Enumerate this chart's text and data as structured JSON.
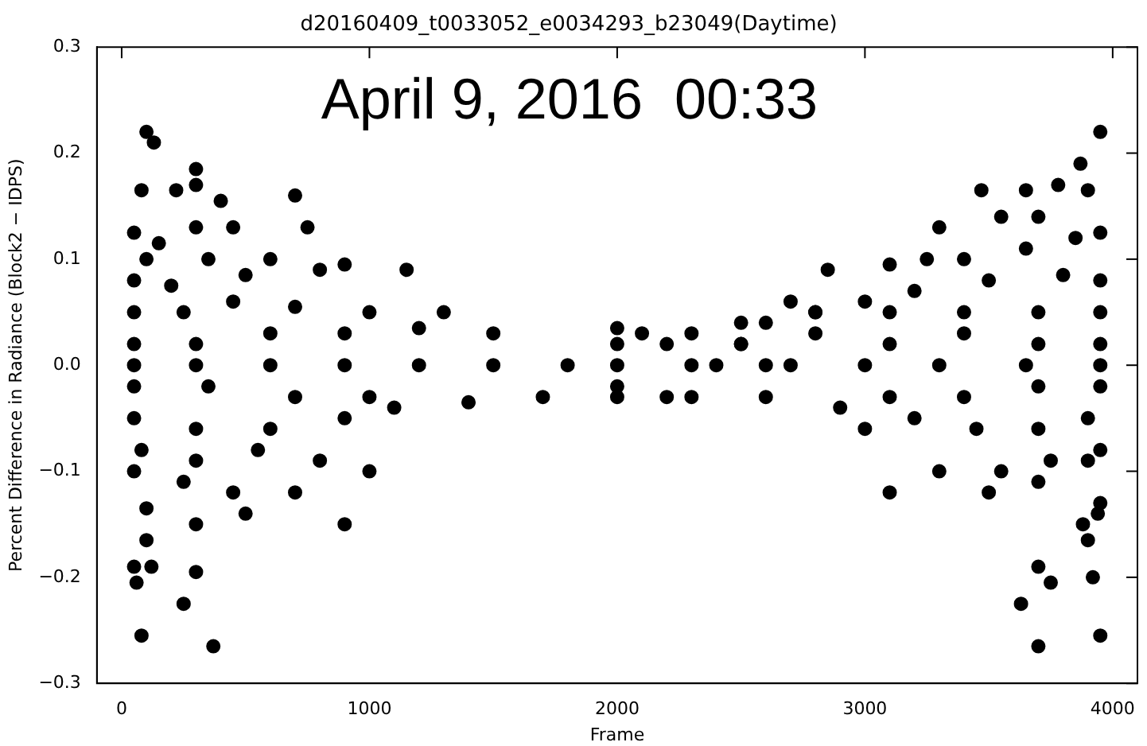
{
  "chart_data": {
    "type": "scatter",
    "title": "d20160409_t0033052_e0034293_b23049(Daytime)",
    "xlabel": "Frame",
    "ylabel": "Percent Difference in Radiance (Block2 − IDPS)",
    "annotations": [
      "April 9, 2016  00:33"
    ],
    "xlim": [
      -100,
      4100
    ],
    "xticks": [
      0,
      1000,
      2000,
      3000,
      4000
    ],
    "ylim": [
      -0.3,
      0.3
    ],
    "yticks": [
      {
        "value": -0.3,
        "label": "−0.3"
      },
      {
        "value": -0.2,
        "label": "−0.2"
      },
      {
        "value": -0.1,
        "label": "−0.1"
      },
      {
        "value": 0,
        "label": "0.0"
      },
      {
        "value": 0.1,
        "label": "0.1"
      },
      {
        "value": 0.2,
        "label": "0.2"
      },
      {
        "value": 0.3,
        "label": "0.3"
      }
    ],
    "grid": false,
    "legend": false,
    "marker": "circle",
    "series": [
      {
        "color": "#000000",
        "x": [
          100,
          130,
          300,
          80,
          220,
          300,
          400,
          700,
          50,
          150,
          300,
          450,
          750,
          100,
          350,
          600,
          900,
          1150,
          50,
          200,
          500,
          800,
          50,
          250,
          450,
          700,
          1000,
          1300,
          50,
          300,
          600,
          900,
          1200,
          1500,
          50,
          300,
          600,
          900,
          1200,
          1500,
          1800,
          50,
          350,
          700,
          1000,
          1400,
          1700,
          50,
          300,
          600,
          900,
          1100,
          80,
          300,
          550,
          800,
          1000,
          50,
          250,
          450,
          700,
          100,
          300,
          500,
          900,
          50,
          120,
          60,
          300,
          250,
          80,
          370,
          100,
          2000,
          2000,
          2000,
          2000,
          2000,
          2100,
          2200,
          2300,
          2300,
          2400,
          2500,
          2600,
          2600,
          2700,
          2800,
          3950,
          3870,
          3470,
          3650,
          3780,
          3900,
          3550,
          3300,
          3700,
          3950,
          3850,
          3650,
          3400,
          3250,
          3100,
          2850,
          3950,
          3800,
          3500,
          3200,
          3000,
          2700,
          3950,
          3700,
          3400,
          3100,
          2800,
          2500,
          3950,
          3700,
          3400,
          3100,
          2800,
          2500,
          2200,
          3950,
          3650,
          3300,
          3000,
          2600,
          2300,
          3950,
          3700,
          3400,
          3100,
          2900,
          3900,
          3700,
          3450,
          3200,
          3000,
          3950,
          3750,
          3550,
          3300,
          3900,
          3700,
          3500,
          3100,
          3950,
          3880,
          3940,
          3700,
          3750,
          3920,
          3630,
          3900,
          3700,
          3950
        ],
        "values": [
          0.22,
          0.21,
          0.185,
          0.165,
          0.165,
          0.17,
          0.155,
          0.16,
          0.125,
          0.115,
          0.13,
          0.13,
          0.13,
          0.1,
          0.1,
          0.1,
          0.095,
          0.09,
          0.08,
          0.075,
          0.085,
          0.09,
          0.05,
          0.05,
          0.06,
          0.055,
          0.05,
          0.05,
          0.02,
          0.02,
          0.03,
          0.03,
          0.035,
          0.03,
          0,
          0,
          0,
          0,
          0,
          0,
          0,
          -0.02,
          -0.02,
          -0.03,
          -0.03,
          -0.035,
          -0.03,
          -0.05,
          -0.06,
          -0.06,
          -0.05,
          -0.04,
          -0.08,
          -0.09,
          -0.08,
          -0.09,
          -0.1,
          -0.1,
          -0.11,
          -0.12,
          -0.12,
          -0.135,
          -0.15,
          -0.14,
          -0.15,
          -0.19,
          -0.19,
          -0.205,
          -0.195,
          -0.225,
          -0.255,
          -0.265,
          -0.165,
          0.035,
          0.02,
          0,
          -0.02,
          -0.03,
          0.03,
          -0.03,
          0.03,
          -0.03,
          0,
          0.02,
          0.04,
          -0.03,
          0,
          0.05,
          0.22,
          0.19,
          0.165,
          0.165,
          0.17,
          0.165,
          0.14,
          0.13,
          0.14,
          0.125,
          0.12,
          0.11,
          0.1,
          0.1,
          0.095,
          0.09,
          0.08,
          0.085,
          0.08,
          0.07,
          0.06,
          0.06,
          0.05,
          0.05,
          0.05,
          0.05,
          0.05,
          0.04,
          0.02,
          0.02,
          0.03,
          0.02,
          0.03,
          0.02,
          0.02,
          0,
          0,
          0,
          0,
          0,
          0,
          -0.02,
          -0.02,
          -0.03,
          -0.03,
          -0.04,
          -0.05,
          -0.06,
          -0.06,
          -0.05,
          -0.06,
          -0.08,
          -0.09,
          -0.1,
          -0.1,
          -0.09,
          -0.11,
          -0.12,
          -0.12,
          -0.13,
          -0.15,
          -0.14,
          -0.19,
          -0.205,
          -0.2,
          -0.225,
          -0.165,
          -0.265,
          -0.255
        ]
      }
    ]
  }
}
